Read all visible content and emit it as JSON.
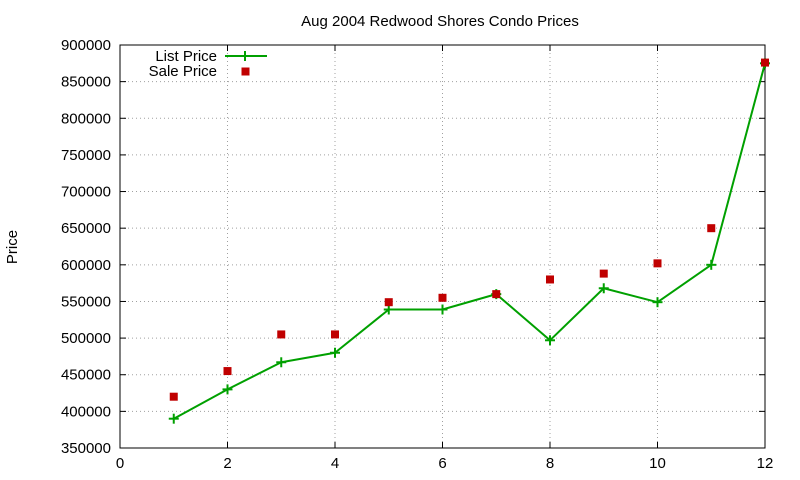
{
  "chart_data": {
    "type": "line",
    "title": "Aug 2004 Redwood Shores Condo Prices",
    "xlabel": "",
    "ylabel": "Price",
    "xlim": [
      0,
      12
    ],
    "ylim": [
      350000,
      900000
    ],
    "xticks": [
      "0",
      "2",
      "4",
      "6",
      "8",
      "10",
      "12"
    ],
    "yticks": [
      "350000",
      "400000",
      "450000",
      "500000",
      "550000",
      "600000",
      "650000",
      "700000",
      "750000",
      "800000",
      "850000",
      "900000"
    ],
    "grid": true,
    "legend_position": "top-left",
    "series": [
      {
        "name": "List Price",
        "style": "line-with-plus-markers",
        "color": "#00a000",
        "x": [
          1,
          2,
          3,
          4,
          5,
          6,
          7,
          8,
          9,
          10,
          11,
          12
        ],
        "values": [
          390000,
          430000,
          467000,
          480000,
          539000,
          539000,
          560000,
          497000,
          568000,
          549000,
          600000,
          875000
        ]
      },
      {
        "name": "Sale Price",
        "style": "square-markers",
        "color": "#c00000",
        "x": [
          1,
          2,
          3,
          4,
          5,
          6,
          7,
          8,
          9,
          10,
          11,
          12
        ],
        "values": [
          420000,
          455000,
          505000,
          505000,
          549000,
          555000,
          560000,
          580000,
          588000,
          602000,
          650000,
          876000
        ]
      }
    ]
  }
}
